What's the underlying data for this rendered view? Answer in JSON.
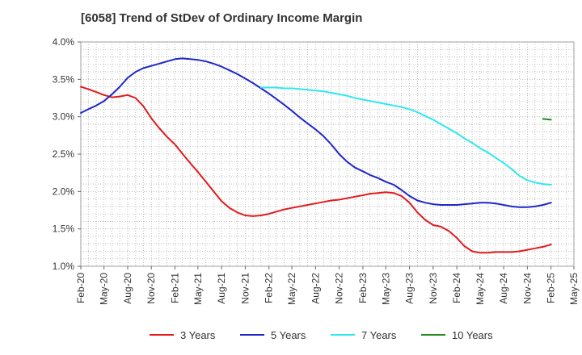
{
  "chart_data": {
    "type": "line",
    "title": "[6058]  Trend of StDev of Ordinary Income Margin",
    "xlabel": "",
    "ylabel": "",
    "x_ticks": [
      "Feb-20",
      "May-20",
      "Aug-20",
      "Nov-20",
      "Feb-21",
      "May-21",
      "Aug-21",
      "Nov-21",
      "Feb-22",
      "May-22",
      "Aug-22",
      "Nov-22",
      "Feb-23",
      "May-23",
      "Aug-23",
      "Nov-23",
      "Feb-24",
      "May-24",
      "Aug-24",
      "Nov-24",
      "Feb-25",
      "May-25"
    ],
    "y_ticks": [
      "1.0%",
      "1.5%",
      "2.0%",
      "2.5%",
      "3.0%",
      "3.5%",
      "4.0%"
    ],
    "ylim": [
      1.0,
      4.0
    ],
    "grid": true,
    "legend_position": "bottom",
    "series": [
      {
        "name": "3 Years",
        "color": "#e31a1c",
        "x": [
          "2020-02",
          "2020-03",
          "2020-04",
          "2020-05",
          "2020-06",
          "2020-07",
          "2020-08",
          "2020-09",
          "2020-10",
          "2020-11",
          "2020-12",
          "2021-01",
          "2021-02",
          "2021-03",
          "2021-04",
          "2021-05",
          "2021-06",
          "2021-07",
          "2021-08",
          "2021-09",
          "2021-10",
          "2021-11",
          "2021-12",
          "2022-01",
          "2022-02",
          "2022-03",
          "2022-04",
          "2022-05",
          "2022-06",
          "2022-07",
          "2022-08",
          "2022-09",
          "2022-10",
          "2022-11",
          "2022-12",
          "2023-01",
          "2023-02",
          "2023-03",
          "2023-04",
          "2023-05",
          "2023-06",
          "2023-07",
          "2023-08",
          "2023-09",
          "2023-10",
          "2023-11",
          "2023-12",
          "2024-01",
          "2024-02",
          "2024-03",
          "2024-04",
          "2024-05",
          "2024-06",
          "2024-07",
          "2024-08",
          "2024-09",
          "2024-10",
          "2024-11",
          "2024-12",
          "2025-01",
          "2025-02"
        ],
        "values": [
          3.4,
          3.37,
          3.33,
          3.29,
          3.26,
          3.27,
          3.29,
          3.25,
          3.14,
          2.98,
          2.85,
          2.73,
          2.63,
          2.51,
          2.38,
          2.26,
          2.13,
          2.0,
          1.87,
          1.78,
          1.72,
          1.68,
          1.67,
          1.68,
          1.7,
          1.73,
          1.76,
          1.78,
          1.8,
          1.82,
          1.84,
          1.86,
          1.88,
          1.89,
          1.91,
          1.93,
          1.95,
          1.97,
          1.98,
          1.99,
          1.98,
          1.94,
          1.85,
          1.72,
          1.62,
          1.55,
          1.53,
          1.47,
          1.38,
          1.27,
          1.2,
          1.18,
          1.18,
          1.19,
          1.19,
          1.19,
          1.2,
          1.22,
          1.24,
          1.26,
          1.29
        ]
      },
      {
        "name": "5 Years",
        "color": "#1f26c9",
        "x": [
          "2020-02",
          "2020-03",
          "2020-04",
          "2020-05",
          "2020-06",
          "2020-07",
          "2020-08",
          "2020-09",
          "2020-10",
          "2020-11",
          "2020-12",
          "2021-01",
          "2021-02",
          "2021-03",
          "2021-04",
          "2021-05",
          "2021-06",
          "2021-07",
          "2021-08",
          "2021-09",
          "2021-10",
          "2021-11",
          "2021-12",
          "2022-01",
          "2022-02",
          "2022-03",
          "2022-04",
          "2022-05",
          "2022-06",
          "2022-07",
          "2022-08",
          "2022-09",
          "2022-10",
          "2022-11",
          "2022-12",
          "2023-01",
          "2023-02",
          "2023-03",
          "2023-04",
          "2023-05",
          "2023-06",
          "2023-07",
          "2023-08",
          "2023-09",
          "2023-10",
          "2023-11",
          "2023-12",
          "2024-01",
          "2024-02",
          "2024-03",
          "2024-04",
          "2024-05",
          "2024-06",
          "2024-07",
          "2024-08",
          "2024-09",
          "2024-10",
          "2024-11",
          "2024-12",
          "2025-01",
          "2025-02"
        ],
        "values": [
          3.05,
          3.1,
          3.15,
          3.21,
          3.3,
          3.4,
          3.52,
          3.6,
          3.65,
          3.68,
          3.71,
          3.74,
          3.77,
          3.78,
          3.77,
          3.76,
          3.74,
          3.71,
          3.67,
          3.62,
          3.57,
          3.51,
          3.45,
          3.38,
          3.31,
          3.24,
          3.16,
          3.08,
          2.99,
          2.91,
          2.83,
          2.74,
          2.63,
          2.5,
          2.4,
          2.32,
          2.27,
          2.22,
          2.18,
          2.13,
          2.09,
          2.02,
          1.94,
          1.88,
          1.85,
          1.83,
          1.82,
          1.82,
          1.82,
          1.83,
          1.84,
          1.85,
          1.85,
          1.84,
          1.82,
          1.8,
          1.79,
          1.79,
          1.8,
          1.82,
          1.85
        ]
      },
      {
        "name": "7 Years",
        "color": "#2fe8ee",
        "x": [
          "2022-01",
          "2022-02",
          "2022-03",
          "2022-04",
          "2022-05",
          "2022-06",
          "2022-07",
          "2022-08",
          "2022-09",
          "2022-10",
          "2022-11",
          "2022-12",
          "2023-01",
          "2023-02",
          "2023-03",
          "2023-04",
          "2023-05",
          "2023-06",
          "2023-07",
          "2023-08",
          "2023-09",
          "2023-10",
          "2023-11",
          "2023-12",
          "2024-01",
          "2024-02",
          "2024-03",
          "2024-04",
          "2024-05",
          "2024-06",
          "2024-07",
          "2024-08",
          "2024-09",
          "2024-10",
          "2024-11",
          "2024-12",
          "2025-01",
          "2025-02"
        ],
        "values": [
          3.39,
          3.39,
          3.39,
          3.38,
          3.38,
          3.37,
          3.36,
          3.35,
          3.34,
          3.32,
          3.3,
          3.28,
          3.25,
          3.23,
          3.21,
          3.19,
          3.17,
          3.15,
          3.13,
          3.1,
          3.06,
          3.01,
          2.96,
          2.9,
          2.84,
          2.78,
          2.71,
          2.65,
          2.58,
          2.52,
          2.45,
          2.38,
          2.3,
          2.21,
          2.15,
          2.12,
          2.1,
          2.09
        ]
      },
      {
        "name": "10 Years",
        "color": "#228b22",
        "x": [
          "2025-01",
          "2025-02"
        ],
        "values": [
          2.97,
          2.96
        ]
      }
    ]
  }
}
